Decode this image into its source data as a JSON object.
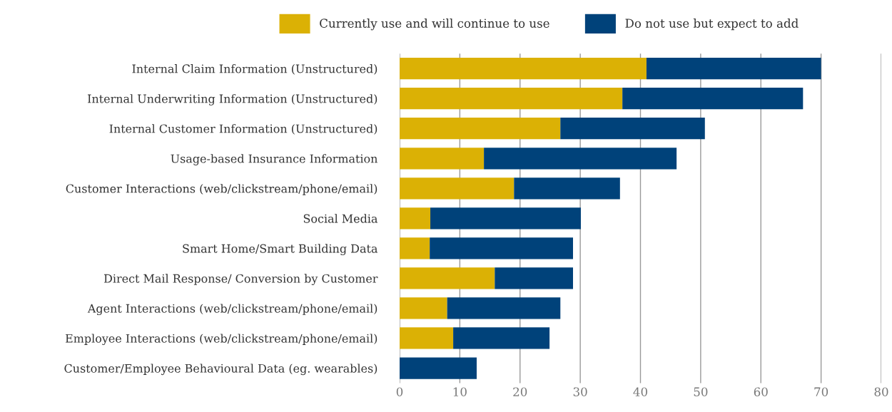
{
  "chart_data": {
    "type": "bar",
    "orientation": "horizontal",
    "stacked": true,
    "categories": [
      "Internal Claim Information (Unstructured)",
      "Internal Underwriting Information (Unstructured)",
      "Internal Customer Information (Unstructured)",
      "Usage-based Insurance Information",
      "Customer Interactions (web/clickstream/phone/email)",
      "Social Media",
      "Smart Home/Smart Building Data",
      "Direct Mail Response/ Conversion by Customer",
      "Agent Interactions (web/clickstream/phone/email)",
      "Employee Interactions (web/clickstream/phone/email)",
      "Customer/Employee Behavioural Data (eg. wearables)"
    ],
    "series": [
      {
        "name": "Currently use and will continue to use",
        "color": "#dbb105",
        "values": [
          41,
          37,
          26.7,
          14,
          19,
          5.1,
          5,
          15.8,
          7.9,
          8.9,
          0
        ]
      },
      {
        "name": "Do not use but expect to add",
        "color": "#00427a",
        "values": [
          29,
          30,
          24,
          32,
          17.6,
          25,
          23.8,
          13,
          18.8,
          16,
          12.8
        ]
      }
    ],
    "xlim": [
      0,
      80
    ],
    "xticks": [
      0,
      10,
      20,
      30,
      40,
      50,
      60,
      70,
      80
    ],
    "grid": "x",
    "legend": "top"
  }
}
